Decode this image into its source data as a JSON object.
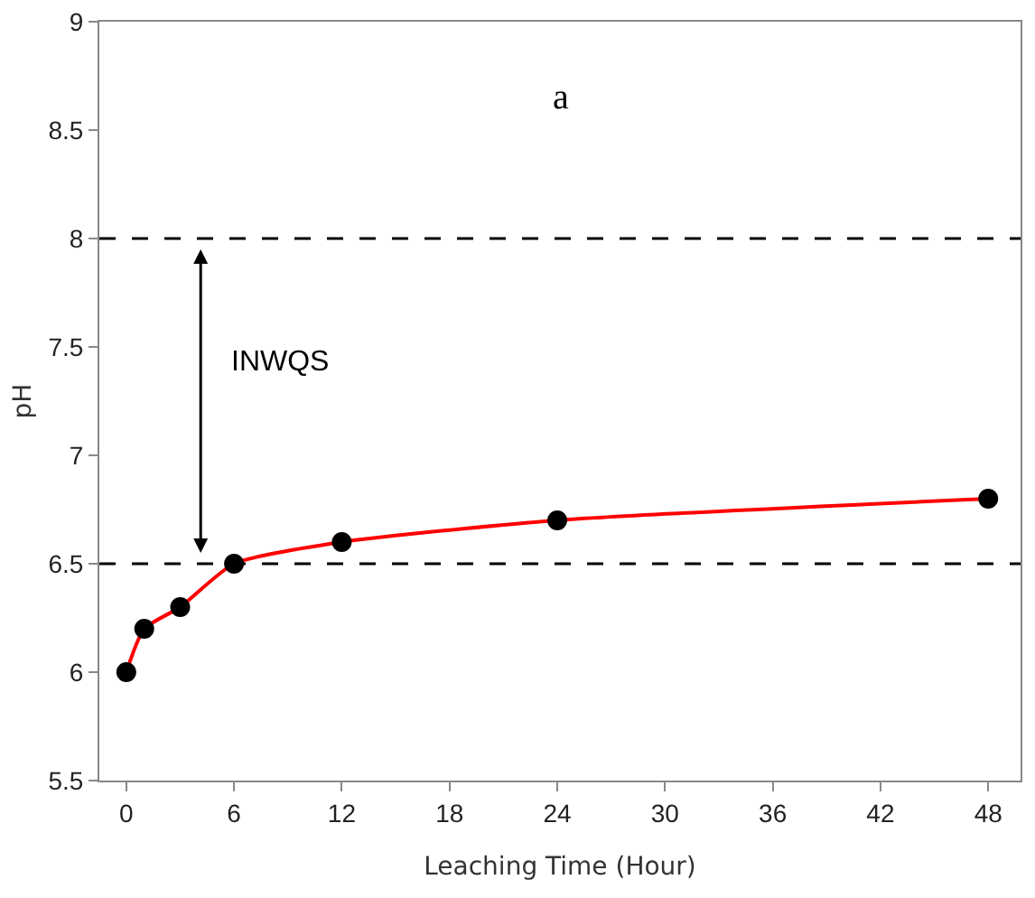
{
  "chart_data": {
    "type": "line",
    "xlabel": "Leaching Time (Hour)",
    "ylabel": "pH",
    "x": [
      0,
      1,
      3,
      6,
      12,
      24,
      48
    ],
    "series": [
      {
        "color": "#ff0000",
        "values": [
          6.0,
          6.2,
          6.3,
          6.5,
          6.6,
          6.7,
          6.8
        ]
      }
    ],
    "xlim": [
      -1.5,
      49.8
    ],
    "xticks": [
      0,
      6,
      12,
      18,
      24,
      30,
      36,
      42,
      48
    ],
    "ylim": [
      5.5,
      9
    ],
    "yticks": [
      5.5,
      6,
      6.5,
      7,
      7.5,
      8,
      8.5,
      9
    ],
    "marker": "circle",
    "grid": false,
    "ref_lines": [
      {
        "axis": "y",
        "value": 8,
        "line_style": "dashed",
        "color": "#000000"
      },
      {
        "axis": "y",
        "value": 6.5,
        "line_style": "dashed",
        "color": "#000000"
      }
    ],
    "annotations": [
      "a",
      "INWQS"
    ]
  }
}
